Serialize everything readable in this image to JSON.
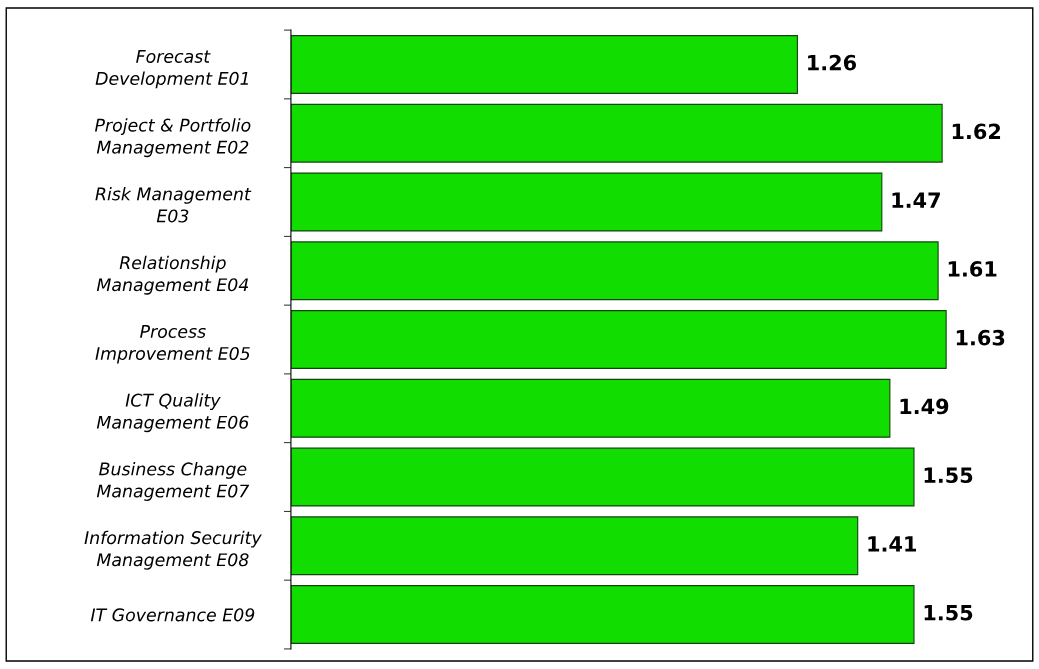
{
  "chart_data": {
    "type": "bar",
    "orientation": "horizontal",
    "categories": [
      "Forecast\nDevelopment E01",
      "Project & Portfolio\nManagement E02",
      "Risk Management\nE03",
      "Relationship\nManagement E04",
      "Process\nImprovement E05",
      "ICT Quality\nManagement E06",
      "Business Change\nManagement E07",
      "Information Security\nManagement E08",
      "IT Governance E09"
    ],
    "values": [
      1.26,
      1.62,
      1.47,
      1.61,
      1.63,
      1.49,
      1.55,
      1.41,
      1.55
    ],
    "color": "#11dd00",
    "data_labels": true,
    "grid": false,
    "legend": false
  }
}
